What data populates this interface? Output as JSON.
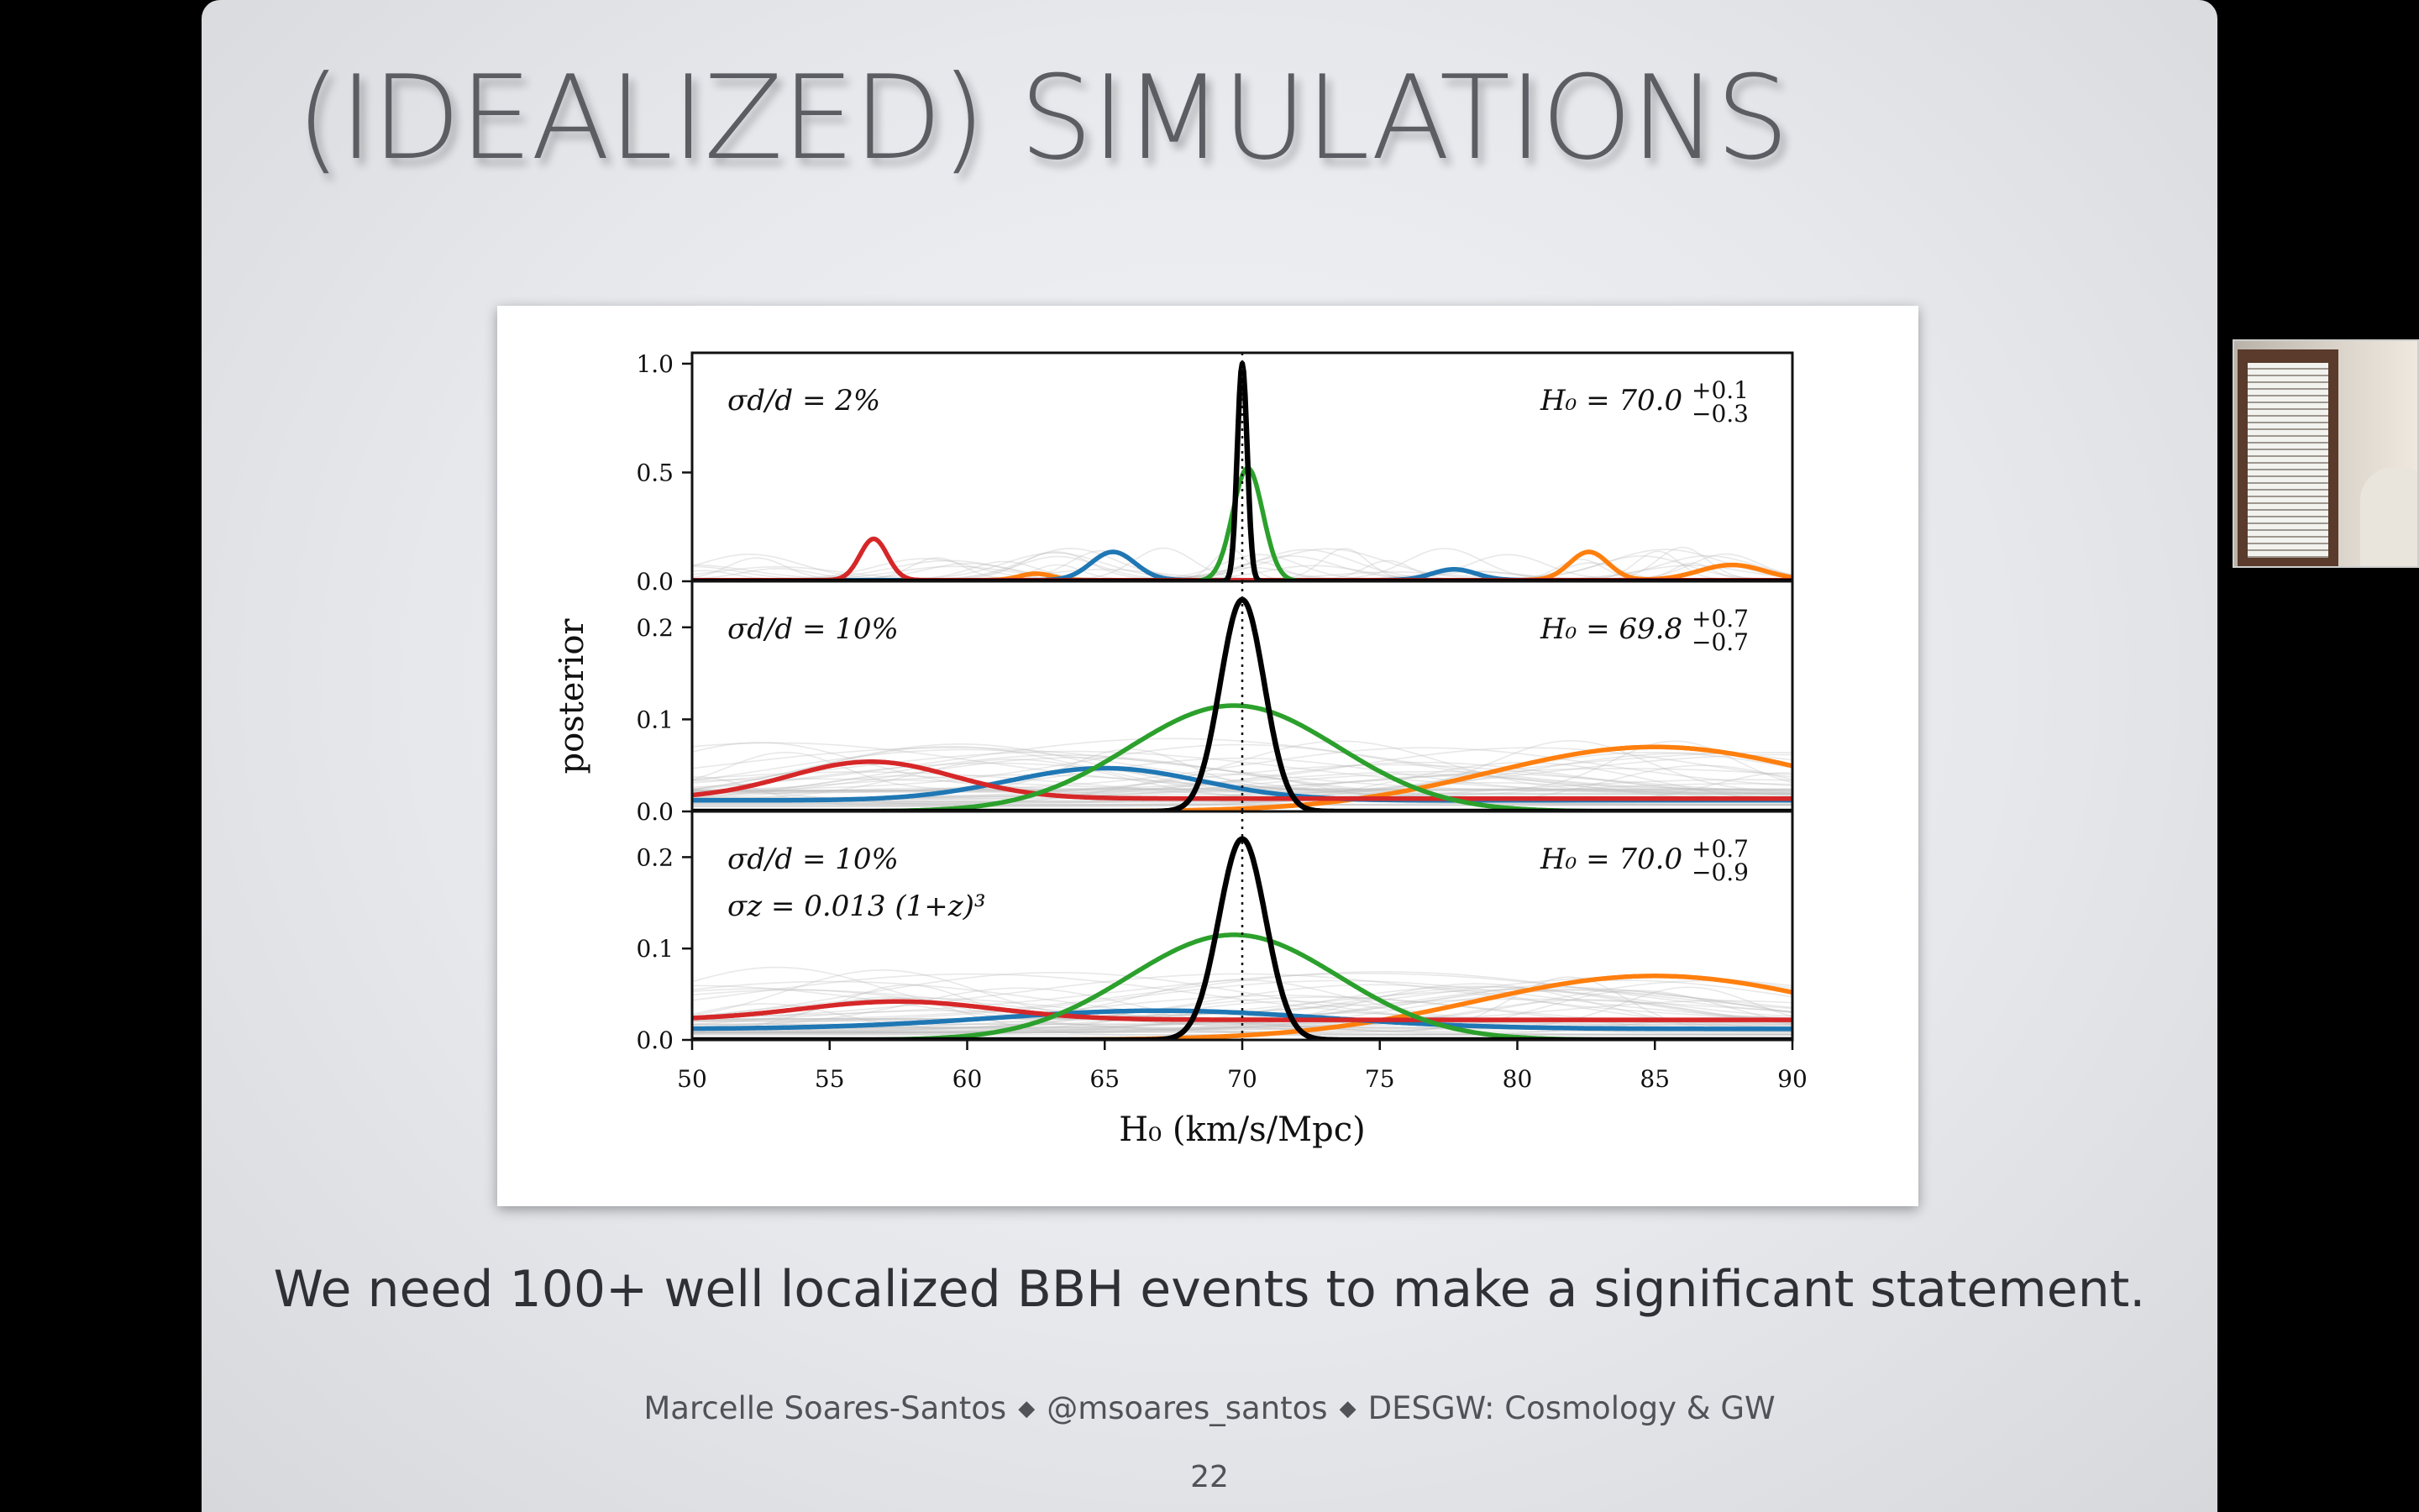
{
  "slide": {
    "title": "(IDEALIZED) SIMULATIONS",
    "statement": "We need 100+ well localized BBH events to make a significant statement.",
    "footer": {
      "author": "Marcelle Soares-Santos",
      "handle": "@msoares_santos",
      "project": "DESGW: Cosmology & GW",
      "separator": "◆"
    },
    "page_number": "22"
  },
  "webcam": {
    "icon": "webcam-feed"
  },
  "chart_data": {
    "type": "line",
    "xlabel": "H₀ (km/s/Mpc)",
    "ylabel": "posterior",
    "xlim": [
      50,
      90
    ],
    "x_ticks": [
      "50",
      "55",
      "60",
      "65",
      "70",
      "75",
      "80",
      "85",
      "90"
    ],
    "reference_line_x": 70,
    "colors": {
      "black": "#000000",
      "green": "#2ca02c",
      "red": "#d62728",
      "blue": "#1f77b4",
      "orange": "#ff7f0e",
      "background_traces": "#bdbdbd"
    },
    "panels": [
      {
        "annotation": [
          "σd/d = 2%"
        ],
        "result_text": "H₀ = 70.0",
        "result_sup": "+0.1",
        "result_sub": "−0.3",
        "ylim": [
          0,
          1.05
        ],
        "y_ticks": [
          "0.0",
          "0.5",
          "1.0"
        ],
        "y_tick_values": [
          0,
          0.5,
          1.0
        ],
        "series": [
          {
            "color": "black",
            "peaks": [
              {
                "mu": 70.0,
                "sigma": 0.18,
                "amp": 1.0
              }
            ],
            "base": 0
          },
          {
            "color": "green",
            "peaks": [
              {
                "mu": 70.2,
                "sigma": 0.55,
                "amp": 0.52
              }
            ],
            "base": 0
          },
          {
            "color": "red",
            "peaks": [
              {
                "mu": 56.6,
                "sigma": 0.5,
                "amp": 0.19
              }
            ],
            "base": 0.005
          },
          {
            "color": "blue",
            "peaks": [
              {
                "mu": 65.3,
                "sigma": 0.8,
                "amp": 0.13
              },
              {
                "mu": 77.7,
                "sigma": 0.8,
                "amp": 0.05
              }
            ],
            "base": 0.005
          },
          {
            "color": "orange",
            "peaks": [
              {
                "mu": 82.6,
                "sigma": 0.7,
                "amp": 0.13
              },
              {
                "mu": 87.8,
                "sigma": 1.2,
                "amp": 0.07
              },
              {
                "mu": 62.5,
                "sigma": 0.6,
                "amp": 0.03
              }
            ],
            "base": 0.005
          }
        ]
      },
      {
        "annotation": [
          "σd/d = 10%"
        ],
        "result_text": "H₀ = 69.8",
        "result_sup": "+0.7",
        "result_sub": "−0.7",
        "ylim": [
          0,
          0.25
        ],
        "y_ticks": [
          "0.0",
          "0.1",
          "0.2"
        ],
        "y_tick_values": [
          0,
          0.1,
          0.2
        ],
        "series": [
          {
            "color": "black",
            "peaks": [
              {
                "mu": 70.0,
                "sigma": 0.8,
                "amp": 0.23
              }
            ],
            "base": 0
          },
          {
            "color": "green",
            "peaks": [
              {
                "mu": 69.7,
                "sigma": 3.8,
                "amp": 0.115
              }
            ],
            "base": 0
          },
          {
            "color": "red",
            "peaks": [
              {
                "mu": 56.5,
                "sigma": 3.0,
                "amp": 0.04
              }
            ],
            "base": 0.014
          },
          {
            "color": "blue",
            "peaks": [
              {
                "mu": 65.0,
                "sigma": 3.5,
                "amp": 0.035
              }
            ],
            "base": 0.012
          },
          {
            "color": "orange",
            "peaks": [
              {
                "mu": 85.0,
                "sigma": 6.0,
                "amp": 0.07
              }
            ],
            "base": 0
          }
        ]
      },
      {
        "annotation": [
          "σd/d = 10%",
          "σz = 0.013 (1+z)³"
        ],
        "result_text": "H₀ = 70.0",
        "result_sup": "+0.7",
        "result_sub": "−0.9",
        "ylim": [
          0,
          0.25
        ],
        "y_ticks": [
          "0.0",
          "0.1",
          "0.2"
        ],
        "y_tick_values": [
          0,
          0.1,
          0.2
        ],
        "series": [
          {
            "color": "black",
            "peaks": [
              {
                "mu": 70.0,
                "sigma": 0.85,
                "amp": 0.22
              }
            ],
            "base": 0
          },
          {
            "color": "green",
            "peaks": [
              {
                "mu": 69.7,
                "sigma": 3.8,
                "amp": 0.115
              }
            ],
            "base": 0
          },
          {
            "color": "red",
            "peaks": [
              {
                "mu": 57.5,
                "sigma": 3.5,
                "amp": 0.02
              }
            ],
            "base": 0.022
          },
          {
            "color": "blue",
            "peaks": [
              {
                "mu": 67.0,
                "sigma": 6.0,
                "amp": 0.02
              }
            ],
            "base": 0.012
          },
          {
            "color": "orange",
            "peaks": [
              {
                "mu": 85.0,
                "sigma": 6.5,
                "amp": 0.07
              }
            ],
            "base": 0
          }
        ]
      }
    ]
  }
}
